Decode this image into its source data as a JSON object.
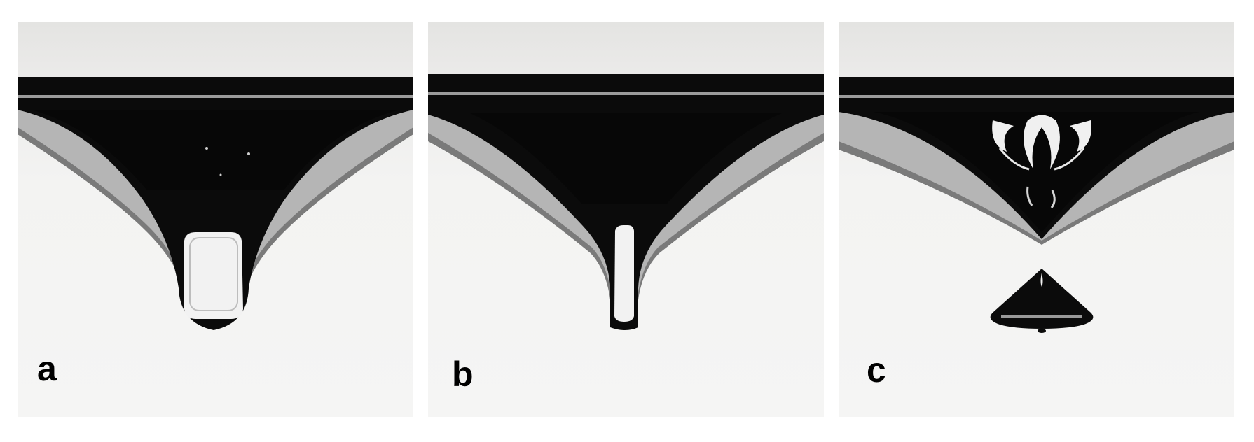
{
  "figure": {
    "background_color": "#ffffff",
    "photo_background_color": "#e9e9e7",
    "fluid_color": "#0b0b0b",
    "highlight_color": "#f2f2f2",
    "panels": [
      {
        "label": "a"
      },
      {
        "label": "b"
      },
      {
        "label": "c"
      }
    ]
  }
}
